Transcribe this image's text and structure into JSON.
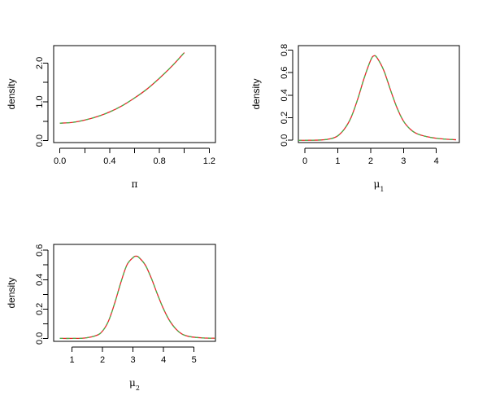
{
  "chart_data": [
    {
      "type": "line",
      "xlabel": "π",
      "ylabel": "density",
      "xlim": [
        -0.05,
        1.25
      ],
      "ylim": [
        -0.05,
        2.45
      ],
      "xticks": [
        0.0,
        0.2,
        0.4,
        0.6,
        0.8,
        1.0,
        1.2
      ],
      "xtick_labels": [
        "0.0",
        "",
        "0.4",
        "",
        "0.8",
        "",
        "1.2"
      ],
      "yticks": [
        0.0,
        0.5,
        1.0,
        1.5,
        2.0
      ],
      "ytick_labels": [
        "0.0",
        "",
        "1.0",
        "",
        "2.0"
      ],
      "series": [
        {
          "color": "#e8262a",
          "style": "solid",
          "x": [
            0.0,
            0.1,
            0.2,
            0.3,
            0.4,
            0.5,
            0.6,
            0.7,
            0.8,
            0.9,
            1.0
          ],
          "y": [
            0.45,
            0.47,
            0.53,
            0.62,
            0.74,
            0.9,
            1.1,
            1.33,
            1.61,
            1.92,
            2.27
          ]
        },
        {
          "color": "#46b54a",
          "style": "dashed",
          "x": [
            0.0,
            0.1,
            0.2,
            0.3,
            0.4,
            0.5,
            0.6,
            0.7,
            0.8,
            0.9,
            1.0
          ],
          "y": [
            0.45,
            0.47,
            0.53,
            0.62,
            0.74,
            0.9,
            1.1,
            1.33,
            1.61,
            1.92,
            2.27
          ]
        }
      ]
    },
    {
      "type": "line",
      "xlabel": "μ",
      "xlabel_sub": "1",
      "ylabel": "density",
      "xlim": [
        -0.2,
        4.7
      ],
      "ylim": [
        -0.02,
        0.84
      ],
      "xticks": [
        0,
        1,
        2,
        3,
        4
      ],
      "xtick_labels": [
        "0",
        "1",
        "2",
        "3",
        "4"
      ],
      "yticks": [
        0.0,
        0.2,
        0.4,
        0.6,
        0.8
      ],
      "ytick_labels": [
        "0.0",
        "0.2",
        "0.4",
        "0.6",
        "0.8"
      ],
      "series": [
        {
          "color": "#e8262a",
          "style": "solid",
          "x": [
            -0.2,
            0.0,
            0.5,
            0.8,
            1.0,
            1.2,
            1.4,
            1.6,
            1.8,
            2.0,
            2.1,
            2.2,
            2.4,
            2.6,
            2.8,
            3.0,
            3.2,
            3.4,
            3.7,
            4.0,
            4.3,
            4.6
          ],
          "y": [
            0.0,
            0.0,
            0.003,
            0.015,
            0.04,
            0.1,
            0.2,
            0.36,
            0.55,
            0.71,
            0.75,
            0.73,
            0.62,
            0.45,
            0.29,
            0.17,
            0.1,
            0.06,
            0.033,
            0.018,
            0.01,
            0.005
          ]
        },
        {
          "color": "#46b54a",
          "style": "dashed",
          "x": [
            -0.2,
            0.0,
            0.5,
            0.8,
            1.0,
            1.2,
            1.4,
            1.6,
            1.8,
            2.0,
            2.1,
            2.2,
            2.4,
            2.6,
            2.8,
            3.0,
            3.2,
            3.4,
            3.7,
            4.0,
            4.3,
            4.6
          ],
          "y": [
            0.0,
            0.0,
            0.003,
            0.015,
            0.04,
            0.1,
            0.2,
            0.36,
            0.55,
            0.71,
            0.75,
            0.73,
            0.62,
            0.45,
            0.29,
            0.17,
            0.1,
            0.06,
            0.033,
            0.018,
            0.01,
            0.005
          ]
        }
      ]
    },
    {
      "type": "line",
      "xlabel": "μ",
      "xlabel_sub": "2",
      "ylabel": "density",
      "xlim": [
        0.4,
        5.7
      ],
      "ylim": [
        -0.02,
        0.64
      ],
      "xticks": [
        1,
        2,
        3,
        4,
        5
      ],
      "xtick_labels": [
        "1",
        "2",
        "3",
        "4",
        "5"
      ],
      "yticks": [
        0.0,
        0.1,
        0.2,
        0.3,
        0.4,
        0.5,
        0.6
      ],
      "ytick_labels": [
        "0.0",
        "",
        "0.2",
        "",
        "0.4",
        "",
        "0.6"
      ],
      "series": [
        {
          "color": "#e8262a",
          "style": "solid",
          "x": [
            0.6,
            1.0,
            1.4,
            1.8,
            2.0,
            2.2,
            2.4,
            2.6,
            2.8,
            3.0,
            3.1,
            3.2,
            3.4,
            3.6,
            3.8,
            4.0,
            4.2,
            4.4,
            4.6,
            4.8,
            5.0,
            5.3,
            5.7
          ],
          "y": [
            0.0,
            0.0,
            0.002,
            0.02,
            0.05,
            0.12,
            0.24,
            0.38,
            0.5,
            0.55,
            0.56,
            0.55,
            0.5,
            0.41,
            0.3,
            0.2,
            0.12,
            0.065,
            0.03,
            0.015,
            0.008,
            0.003,
            0.001
          ]
        },
        {
          "color": "#46b54a",
          "style": "dashed",
          "x": [
            0.6,
            1.0,
            1.4,
            1.8,
            2.0,
            2.2,
            2.4,
            2.6,
            2.8,
            3.0,
            3.1,
            3.2,
            3.4,
            3.6,
            3.8,
            4.0,
            4.2,
            4.4,
            4.6,
            4.8,
            5.0,
            5.3,
            5.7
          ],
          "y": [
            0.0,
            0.0,
            0.002,
            0.02,
            0.05,
            0.12,
            0.24,
            0.38,
            0.5,
            0.55,
            0.56,
            0.55,
            0.5,
            0.41,
            0.3,
            0.2,
            0.12,
            0.065,
            0.03,
            0.015,
            0.008,
            0.003,
            0.001
          ]
        }
      ]
    }
  ]
}
